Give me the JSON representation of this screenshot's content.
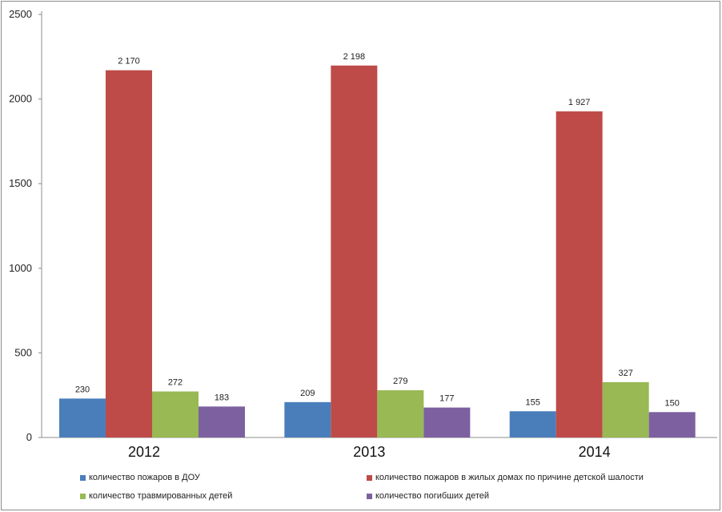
{
  "chart_data": {
    "type": "bar",
    "categories": [
      "2012",
      "2013",
      "2014"
    ],
    "series": [
      {
        "name": "количество пожаров в ДОУ",
        "values": [
          230,
          209,
          155
        ],
        "labels": [
          "230",
          "209",
          "155"
        ],
        "color": "#4a7ebb"
      },
      {
        "name": "количество пожаров в жилых домах по причине детской шалости",
        "values": [
          2170,
          2198,
          1927
        ],
        "labels": [
          "2 170",
          "2 198",
          "1 927"
        ],
        "color": "#be4b48"
      },
      {
        "name": "количество травмированных детей",
        "values": [
          272,
          279,
          327
        ],
        "labels": [
          "272",
          "279",
          "327"
        ],
        "color": "#98b954"
      },
      {
        "name": "количество погибших детей",
        "values": [
          183,
          177,
          150
        ],
        "labels": [
          "183",
          "177",
          "150"
        ],
        "color": "#7d60a0"
      }
    ],
    "y_ticks": [
      "0",
      "500",
      "1000",
      "1500",
      "2000",
      "2500"
    ],
    "ylim": [
      0,
      2500
    ],
    "title": "",
    "xlabel": "",
    "ylabel": "",
    "legend_position": "bottom"
  }
}
